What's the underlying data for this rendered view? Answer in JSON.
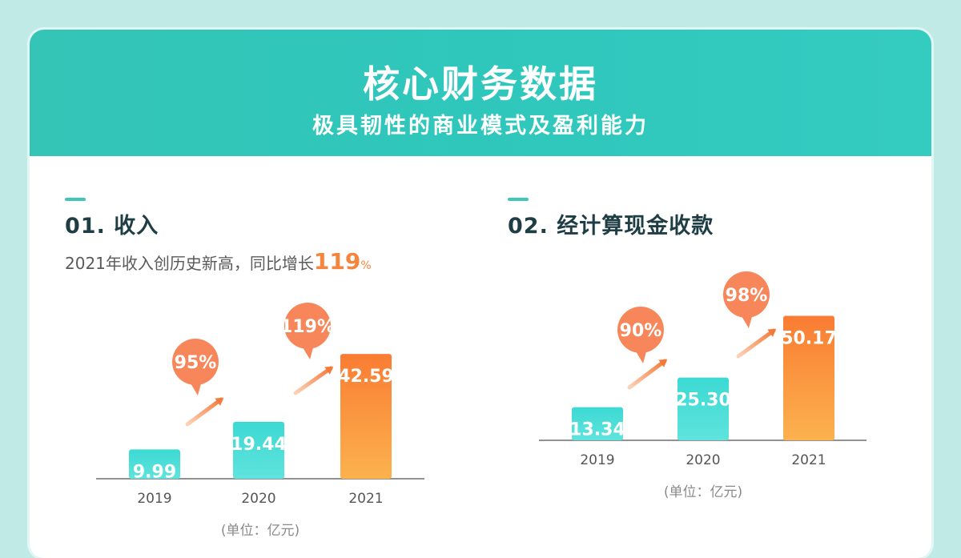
{
  "header": {
    "title": "核心财务数据",
    "subtitle": "极具韧性的商业模式及盈利能力"
  },
  "colors": {
    "teal": "#3fd6cf",
    "orange": "#f98a3c",
    "bubble": "#f7875a",
    "accent": "#f5843d"
  },
  "sections": [
    {
      "title": "01. 收入",
      "desc_prefix": "2021年收入创历史新高，同比增长",
      "desc_highlight": "119",
      "desc_suffix": "%"
    },
    {
      "title": "02. 经计算现金收款"
    }
  ],
  "chart_data": [
    {
      "type": "bar",
      "title": "01. 收入",
      "categories": [
        "2019",
        "2020",
        "2021"
      ],
      "values": [
        9.99,
        19.44,
        42.59
      ],
      "value_labels": [
        "9.99",
        "19.44",
        "42.59"
      ],
      "growth_labels": [
        "95%",
        "119%"
      ],
      "unit": "(单位：亿元)",
      "highlight_index": 2
    },
    {
      "type": "bar",
      "title": "02. 经计算现金收款",
      "categories": [
        "2019",
        "2020",
        "2021"
      ],
      "values": [
        13.34,
        25.3,
        50.17
      ],
      "value_labels": [
        "13.34",
        "25.30",
        "50.17"
      ],
      "growth_labels": [
        "90%",
        "98%"
      ],
      "unit": "(单位：亿元)",
      "highlight_index": 2
    }
  ]
}
